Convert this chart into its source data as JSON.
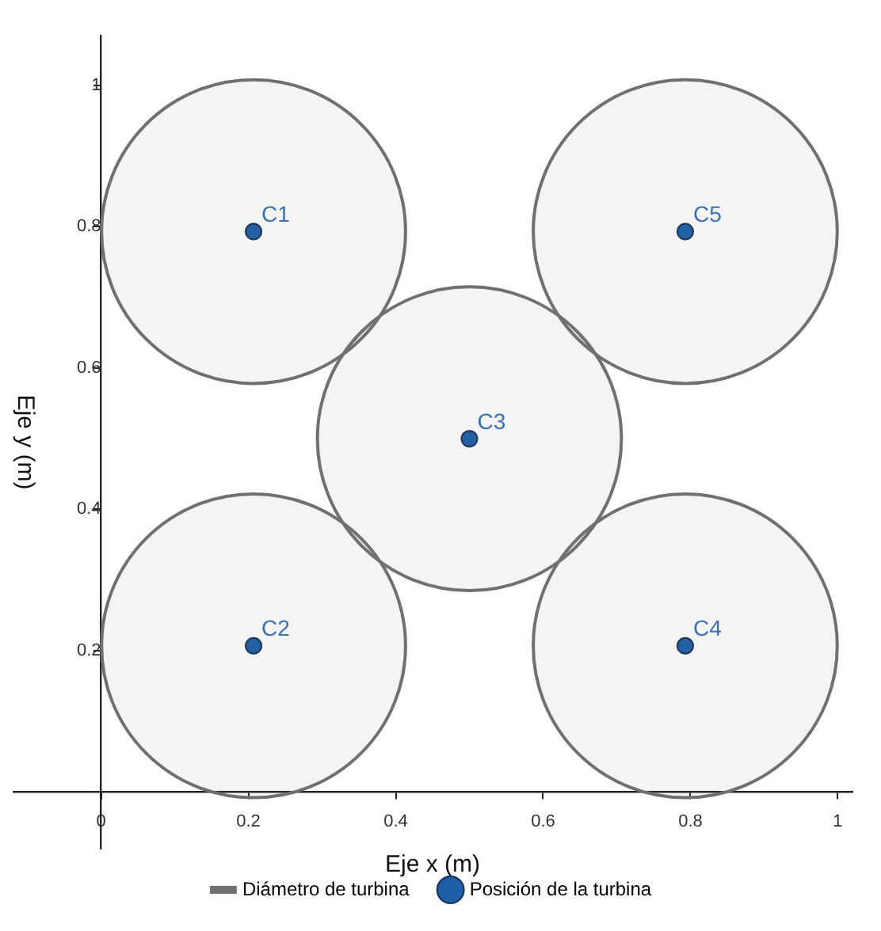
{
  "chart_data": {
    "type": "scatter",
    "xlabel": "Eje x (m)",
    "ylabel": "Eje y (m)",
    "xlim": [
      -0.12,
      1.02
    ],
    "ylim": [
      -0.08,
      1.07
    ],
    "xticks": [
      0,
      0.2,
      0.4,
      0.6,
      0.8,
      1
    ],
    "yticks": [
      0.2,
      0.4,
      0.6,
      0.8,
      1
    ],
    "x": [
      0.207,
      0.207,
      0.5,
      0.793,
      0.793
    ],
    "series": [
      {
        "name": "Diámetro de turbina",
        "type": "bubble",
        "color": "#707070",
        "values": [
          0.793,
          0.207,
          0.5,
          0.207,
          0.793
        ],
        "sizes": [
          1,
          1,
          1,
          1,
          1
        ]
      },
      {
        "name": "Posición de la turbina",
        "color": "#1f5fa8",
        "values": [
          0.793,
          0.207,
          0.5,
          0.207,
          0.793
        ]
      }
    ],
    "annotations": [
      {
        "text": "C1",
        "x": 0.207,
        "y": 0.793
      },
      {
        "text": "C2",
        "x": 0.207,
        "y": 0.207
      },
      {
        "text": "C3",
        "x": 0.5,
        "y": 0.5
      },
      {
        "text": "C4",
        "x": 0.793,
        "y": 0.207
      },
      {
        "text": "C5",
        "x": 0.793,
        "y": 0.793
      }
    ],
    "grid": false,
    "legend": "bottom",
    "marker": "circle"
  }
}
